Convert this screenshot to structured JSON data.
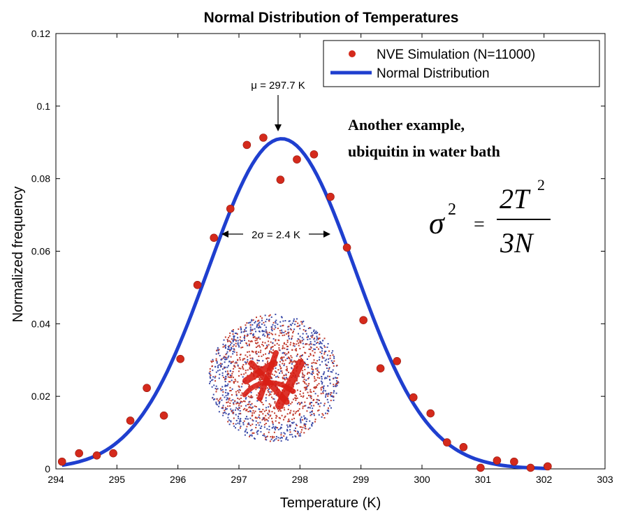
{
  "chart_data": {
    "type": "scatter",
    "title": "Normal Distribution of Temperatures",
    "xlabel": "Temperature (K)",
    "ylabel": "Normalized frequency",
    "xlim": [
      294,
      303
    ],
    "ylim": [
      0,
      0.12
    ],
    "x_ticks": [
      294,
      295,
      296,
      297,
      298,
      299,
      300,
      301,
      302,
      303
    ],
    "x_tick_labels": [
      "294",
      "295",
      "296",
      "297",
      "298",
      "299",
      "300",
      "301",
      "302",
      "303"
    ],
    "y_ticks": [
      0,
      0.02,
      0.04,
      0.06,
      0.08,
      0.1,
      0.12
    ],
    "y_tick_labels": [
      "0",
      "0.02",
      "0.04",
      "0.06",
      "0.08",
      "0.1",
      "0.12"
    ],
    "legend_position": "top-right",
    "series": [
      {
        "name": "NVE Simulation (N=11000)",
        "kind": "scatter",
        "color": "#d42a1c",
        "x": [
          294.1,
          294.38,
          294.67,
          294.94,
          295.22,
          295.49,
          295.77,
          296.04,
          296.32,
          296.59,
          296.86,
          297.13,
          297.4,
          297.68,
          297.95,
          298.23,
          298.5,
          298.77,
          299.04,
          299.32,
          299.59,
          299.86,
          300.14,
          300.41,
          300.68,
          300.96,
          301.23,
          301.51,
          301.78,
          302.06
        ],
        "y": [
          0.002,
          0.0043,
          0.0037,
          0.0043,
          0.0133,
          0.0223,
          0.0147,
          0.0303,
          0.0507,
          0.0637,
          0.0717,
          0.0893,
          0.0913,
          0.0797,
          0.0853,
          0.0867,
          0.075,
          0.061,
          0.041,
          0.0277,
          0.0297,
          0.0197,
          0.0153,
          0.0073,
          0.006,
          0.0003,
          0.0023,
          0.002,
          0.0003,
          0.0007
        ]
      },
      {
        "name": "Normal Distribution",
        "kind": "line",
        "color": "#1f3fcf",
        "mu": 297.7,
        "sigma": 1.2,
        "peak": 0.091,
        "x_range": [
          294.1,
          302.06
        ]
      }
    ],
    "annotations": {
      "mu_label": "μ = 297.7 K",
      "sigma_label": "2σ = 2.4 K"
    }
  },
  "overlay": {
    "heading_line1": "Another example,",
    "heading_line2": "ubiquitin in water bath",
    "formula": {
      "lhs": "σ",
      "lhs_exp": "2",
      "equals": "=",
      "numerator": "2T",
      "numerator_exp": "2",
      "denominator": "3N"
    },
    "molecule_colors": {
      "water_oxygen": "#c0392b",
      "water_hydrogen": "#3a4aa8",
      "protein": "#d81e14"
    }
  }
}
